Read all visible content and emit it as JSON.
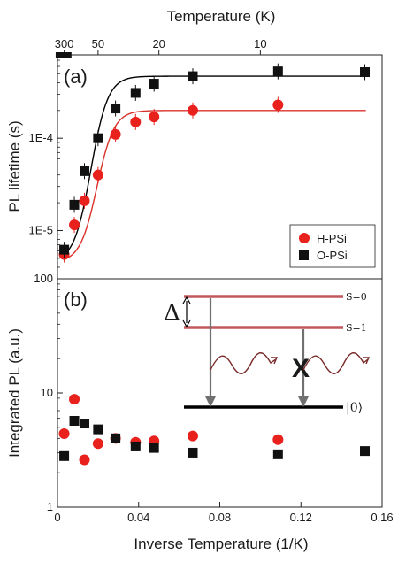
{
  "chart_data": [
    {
      "panel": "(a)",
      "type": "scatter",
      "scale_y": "log",
      "ylabel": "PL lifetime (s)",
      "top_xlabel": "Temperature (K)",
      "top_ticks": [
        {
          "label": "300",
          "at": 0.00333
        },
        {
          "label": "50",
          "at": 0.02
        },
        {
          "label": "20",
          "at": 0.05
        },
        {
          "label": "10",
          "at": 0.1
        }
      ],
      "xlim": [
        0.0,
        0.16
      ],
      "ylim": [
        3e-06,
        0.0008
      ],
      "y_ticks": [
        {
          "value": 1e-05,
          "label": "1E-5"
        },
        {
          "value": 0.0001,
          "label": "1E-4"
        }
      ],
      "legend": {
        "position": "bottom-right"
      },
      "series": [
        {
          "name": "H-PSi",
          "color": "#e8211d",
          "marker": "circle",
          "points": [
            {
              "x": 0.0033,
              "y": 5.5e-06
            },
            {
              "x": 0.0083,
              "y": 1.15e-05
            },
            {
              "x": 0.0133,
              "y": 2.1e-05
            },
            {
              "x": 0.02,
              "y": 4e-05
            },
            {
              "x": 0.0286,
              "y": 0.00011
            },
            {
              "x": 0.0385,
              "y": 0.00015
            },
            {
              "x": 0.0476,
              "y": 0.00017
            },
            {
              "x": 0.0667,
              "y": 0.0002
            },
            {
              "x": 0.1087,
              "y": 0.00023
            }
          ],
          "fit": {
            "type": "sigmoid",
            "low": 4.5e-06,
            "high": 0.0002,
            "x0": 0.0195,
            "width": 0.0042,
            "color": "#d9312b"
          }
        },
        {
          "name": "O-PSi",
          "color": "#111111",
          "marker": "square",
          "points": [
            {
              "x": 0.0033,
              "y": 6.2e-06
            },
            {
              "x": 0.0083,
              "y": 1.9e-05
            },
            {
              "x": 0.0133,
              "y": 4.4e-05
            },
            {
              "x": 0.02,
              "y": 0.0001
            },
            {
              "x": 0.0286,
              "y": 0.00021
            },
            {
              "x": 0.0385,
              "y": 0.00031
            },
            {
              "x": 0.0476,
              "y": 0.00039
            },
            {
              "x": 0.0667,
              "y": 0.00047
            },
            {
              "x": 0.1087,
              "y": 0.00053
            },
            {
              "x": 0.1515,
              "y": 0.00052
            }
          ],
          "fit": {
            "type": "sigmoid",
            "low": 4.5e-06,
            "high": 0.00047,
            "x0": 0.0165,
            "width": 0.0042,
            "color": "#000000"
          }
        }
      ],
      "panel_top_squares": [
        {
          "x": 0.0015,
          "y": 0.0008
        },
        {
          "x": 0.0045,
          "y": 0.0008
        }
      ]
    },
    {
      "panel": "(b)",
      "type": "scatter",
      "scale_y": "log",
      "ylabel": "Integrated PL (a.u.)",
      "xlabel": "Inverse Temperature (1/K)",
      "xlim": [
        0.0,
        0.16
      ],
      "ylim": [
        1,
        100
      ],
      "x_ticks": [
        {
          "value": 0.0,
          "label": "0"
        },
        {
          "value": 0.04,
          "label": "0.04"
        },
        {
          "value": 0.08,
          "label": "0.08"
        },
        {
          "value": 0.12,
          "label": "0.12"
        },
        {
          "value": 0.16,
          "label": "0.16"
        }
      ],
      "y_ticks": [
        {
          "value": 1,
          "label": "1"
        },
        {
          "value": 10,
          "label": "10"
        },
        {
          "value": 100,
          "label": "100"
        }
      ],
      "series": [
        {
          "name": "H-PSi",
          "color": "#e8211d",
          "marker": "circle",
          "points": [
            {
              "x": 0.0033,
              "y": 4.4
            },
            {
              "x": 0.0083,
              "y": 8.8
            },
            {
              "x": 0.0133,
              "y": 2.6
            },
            {
              "x": 0.02,
              "y": 3.6
            },
            {
              "x": 0.0286,
              "y": 4.0
            },
            {
              "x": 0.0385,
              "y": 3.7
            },
            {
              "x": 0.0476,
              "y": 3.8
            },
            {
              "x": 0.0667,
              "y": 4.2
            },
            {
              "x": 0.1087,
              "y": 3.9
            }
          ]
        },
        {
          "name": "O-PSi",
          "color": "#111111",
          "marker": "square",
          "points": [
            {
              "x": 0.0033,
              "y": 2.8
            },
            {
              "x": 0.0083,
              "y": 5.7
            },
            {
              "x": 0.0133,
              "y": 5.4
            },
            {
              "x": 0.02,
              "y": 4.8
            },
            {
              "x": 0.0286,
              "y": 4.0
            },
            {
              "x": 0.0385,
              "y": 3.4
            },
            {
              "x": 0.0476,
              "y": 3.3
            },
            {
              "x": 0.0667,
              "y": 3.0
            },
            {
              "x": 0.1087,
              "y": 2.9
            },
            {
              "x": 0.1515,
              "y": 3.1
            }
          ]
        }
      ],
      "inset": {
        "levels": [
          {
            "label": "S=0",
            "color": "#c0595d"
          },
          {
            "label": "S=1",
            "color": "#c0595d"
          },
          {
            "label": "|0⟩",
            "color": "#000000"
          }
        ],
        "gap_label": "Δ",
        "blocked_label": "X"
      }
    }
  ]
}
